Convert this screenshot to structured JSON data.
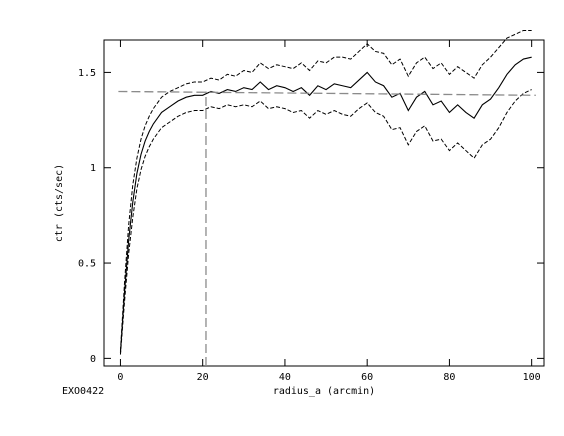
{
  "chart_data": {
    "type": "line",
    "title": "",
    "xlabel": "radius_a (arcmin)",
    "ylabel": "ctr (cts/sec)",
    "annotation": "EXO0422",
    "xlim": [
      -4,
      103
    ],
    "ylim": [
      -0.04,
      1.67
    ],
    "x_ticks": [
      0,
      20,
      40,
      60,
      80,
      100
    ],
    "y_ticks": [
      0,
      0.5,
      1,
      1.5
    ],
    "y_tick_labels": [
      "0",
      "0.5",
      "1",
      "1.5"
    ],
    "grid": false,
    "legend": "none",
    "series": [
      {
        "style": "solid",
        "x": [
          0,
          1,
          2,
          3,
          4,
          5,
          6,
          7,
          8,
          9,
          10,
          12,
          14,
          16,
          18,
          20,
          22,
          24,
          26,
          28,
          30,
          32,
          34,
          36,
          38,
          40,
          42,
          44,
          46,
          48,
          50,
          52,
          54,
          56,
          58,
          60,
          62,
          64,
          66,
          68,
          70,
          72,
          74,
          76,
          78,
          80,
          82,
          84,
          86,
          88,
          90,
          92,
          94,
          96,
          98,
          100
        ],
        "values": [
          0.03,
          0.35,
          0.62,
          0.82,
          0.97,
          1.07,
          1.14,
          1.19,
          1.23,
          1.26,
          1.29,
          1.32,
          1.35,
          1.37,
          1.38,
          1.38,
          1.4,
          1.39,
          1.41,
          1.4,
          1.42,
          1.41,
          1.45,
          1.41,
          1.43,
          1.42,
          1.4,
          1.42,
          1.38,
          1.43,
          1.41,
          1.44,
          1.43,
          1.42,
          1.46,
          1.5,
          1.45,
          1.43,
          1.37,
          1.39,
          1.3,
          1.37,
          1.4,
          1.33,
          1.35,
          1.29,
          1.33,
          1.29,
          1.26,
          1.33,
          1.36,
          1.42,
          1.49,
          1.54,
          1.57,
          1.58
        ]
      },
      {
        "style": "dashed",
        "x": [
          0,
          1,
          2,
          3,
          4,
          5,
          6,
          7,
          8,
          9,
          10,
          12,
          14,
          16,
          18,
          20,
          22,
          24,
          26,
          28,
          30,
          32,
          34,
          36,
          38,
          40,
          42,
          44,
          46,
          48,
          50,
          52,
          54,
          56,
          58,
          60,
          62,
          64,
          66,
          68,
          70,
          72,
          74,
          76,
          78,
          80,
          82,
          84,
          86,
          88,
          90,
          92,
          94,
          96,
          98,
          100
        ],
        "values": [
          0.04,
          0.4,
          0.7,
          0.91,
          1.05,
          1.15,
          1.22,
          1.27,
          1.31,
          1.34,
          1.37,
          1.4,
          1.42,
          1.44,
          1.45,
          1.45,
          1.47,
          1.46,
          1.49,
          1.48,
          1.51,
          1.5,
          1.55,
          1.52,
          1.54,
          1.53,
          1.52,
          1.55,
          1.51,
          1.56,
          1.55,
          1.58,
          1.58,
          1.57,
          1.61,
          1.65,
          1.61,
          1.6,
          1.54,
          1.57,
          1.48,
          1.55,
          1.58,
          1.52,
          1.55,
          1.49,
          1.53,
          1.5,
          1.47,
          1.54,
          1.58,
          1.63,
          1.68,
          1.7,
          1.72,
          1.72
        ]
      },
      {
        "style": "dashed",
        "x": [
          0,
          1,
          2,
          3,
          4,
          5,
          6,
          7,
          8,
          9,
          10,
          12,
          14,
          16,
          18,
          20,
          22,
          24,
          26,
          28,
          30,
          32,
          34,
          36,
          38,
          40,
          42,
          44,
          46,
          48,
          50,
          52,
          54,
          56,
          58,
          60,
          62,
          64,
          66,
          68,
          70,
          72,
          74,
          76,
          78,
          80,
          82,
          84,
          86,
          88,
          90,
          92,
          94,
          96,
          98,
          100
        ],
        "values": [
          0.02,
          0.3,
          0.55,
          0.74,
          0.89,
          0.99,
          1.06,
          1.11,
          1.15,
          1.18,
          1.21,
          1.24,
          1.27,
          1.29,
          1.3,
          1.3,
          1.32,
          1.31,
          1.33,
          1.32,
          1.33,
          1.32,
          1.35,
          1.31,
          1.32,
          1.31,
          1.29,
          1.3,
          1.26,
          1.3,
          1.28,
          1.3,
          1.28,
          1.27,
          1.31,
          1.34,
          1.29,
          1.27,
          1.2,
          1.21,
          1.12,
          1.19,
          1.22,
          1.14,
          1.15,
          1.09,
          1.13,
          1.09,
          1.05,
          1.12,
          1.15,
          1.21,
          1.29,
          1.35,
          1.39,
          1.41
        ]
      },
      {
        "style": "reference-horizontal",
        "x": [
          -0.5,
          101
        ],
        "values": [
          1.4,
          1.38
        ]
      },
      {
        "style": "reference-vertical",
        "x": [
          20.8,
          20.8
        ],
        "values": [
          -0.04,
          1.4
        ]
      }
    ]
  }
}
